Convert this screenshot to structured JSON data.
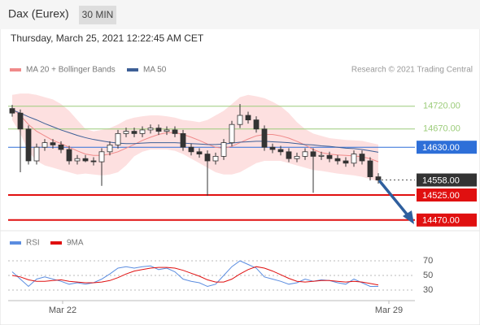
{
  "header": {
    "title": "Dax (Eurex)",
    "timeframe": "30 MIN",
    "timestamp": "Thursday, March 25, 2021 12:22:45 AM CET",
    "credit": "Research © 2021 Trading Central"
  },
  "chart_data": [
    {
      "type": "candlestick",
      "open": [
        14715,
        14705,
        14670,
        14600,
        14630,
        14640,
        14635,
        14625,
        14600,
        14605,
        14600,
        14598,
        14620,
        14635,
        14660,
        14665,
        14660,
        14668,
        14672,
        14665,
        14668,
        14660,
        14630,
        14620,
        14615,
        14600,
        14610,
        14640,
        14680,
        14700,
        14690,
        14670,
        14630,
        14625,
        14620,
        14605,
        14610,
        14620,
        14610,
        14612,
        14605,
        14600,
        14595,
        14615,
        14600,
        14565
      ],
      "high": [
        14723,
        14713,
        14678,
        14638,
        14648,
        14648,
        14643,
        14633,
        14613,
        14613,
        14608,
        14628,
        14643,
        14668,
        14673,
        14673,
        14676,
        14680,
        14680,
        14676,
        14676,
        14668,
        14638,
        14628,
        14623,
        14618,
        14648,
        14688,
        14725,
        14708,
        14698,
        14678,
        14638,
        14633,
        14628,
        14618,
        14628,
        14628,
        14620,
        14620,
        14613,
        14608,
        14623,
        14623,
        14608,
        14573
      ],
      "low": [
        14697,
        14575,
        14592,
        14592,
        14622,
        14627,
        14617,
        14592,
        14592,
        14597,
        14590,
        14545,
        14612,
        14627,
        14652,
        14652,
        14652,
        14660,
        14657,
        14657,
        14652,
        14622,
        14612,
        14607,
        14523,
        14592,
        14602,
        14632,
        14672,
        14682,
        14662,
        14622,
        14617,
        14612,
        14597,
        14597,
        14602,
        14530,
        14602,
        14597,
        14592,
        14587,
        14587,
        14592,
        14557,
        14550
      ],
      "close": [
        14705,
        14670,
        14600,
        14630,
        14640,
        14635,
        14625,
        14600,
        14605,
        14600,
        14598,
        14620,
        14635,
        14660,
        14665,
        14660,
        14668,
        14672,
        14665,
        14668,
        14660,
        14630,
        14620,
        14615,
        14600,
        14610,
        14640,
        14680,
        14700,
        14690,
        14670,
        14630,
        14625,
        14620,
        14605,
        14610,
        14620,
        14610,
        14612,
        14605,
        14600,
        14595,
        14615,
        14600,
        14565,
        14558
      ],
      "up_color": "#ffffff",
      "down_color": "#333333",
      "series": [
        {
          "name": "MA 20 + Bollinger Bands",
          "color": "#f08a8a",
          "band_color": "#fde0e0",
          "values": [
            14715,
            14700,
            14680,
            14665,
            14655,
            14645,
            14638,
            14630,
            14622,
            14615,
            14612,
            14612,
            14615,
            14620,
            14628,
            14636,
            14645,
            14652,
            14658,
            14662,
            14662,
            14658,
            14652,
            14645,
            14637,
            14630,
            14628,
            14632,
            14640,
            14648,
            14655,
            14658,
            14658,
            14655,
            14650,
            14643,
            14635,
            14625,
            14618,
            14615,
            14613,
            14612,
            14611,
            14609,
            14605,
            14598
          ],
          "upper": [
            14745,
            14748,
            14748,
            14745,
            14740,
            14735,
            14725,
            14710,
            14690,
            14670,
            14665,
            14668,
            14672,
            14680,
            14690,
            14695,
            14698,
            14700,
            14700,
            14698,
            14695,
            14690,
            14688,
            14685,
            14690,
            14700,
            14710,
            14725,
            14740,
            14745,
            14742,
            14738,
            14730,
            14720,
            14705,
            14685,
            14670,
            14660,
            14655,
            14650,
            14648,
            14646,
            14645,
            14644,
            14640,
            14636
          ],
          "lower": [
            14690,
            14660,
            14620,
            14600,
            14590,
            14585,
            14580,
            14575,
            14570,
            14572,
            14570,
            14568,
            14570,
            14575,
            14590,
            14610,
            14620,
            14625,
            14625,
            14625,
            14622,
            14615,
            14605,
            14595,
            14585,
            14575,
            14570,
            14570,
            14575,
            14585,
            14595,
            14600,
            14600,
            14600,
            14595,
            14590,
            14585,
            14580,
            14578,
            14575,
            14572,
            14570,
            14568,
            14565,
            14560,
            14555
          ]
        },
        {
          "name": "MA 50",
          "color": "#3d5f96",
          "values": [
            14712,
            14705,
            14697,
            14690,
            14682,
            14675,
            14668,
            14662,
            14656,
            14651,
            14647,
            14644,
            14641,
            14639,
            14638,
            14638,
            14639,
            14640,
            14640,
            14640,
            14640,
            14639,
            14638,
            14637,
            14636,
            14636,
            14637,
            14639,
            14641,
            14642,
            14643,
            14643,
            14642,
            14641,
            14640,
            14638,
            14636,
            14635,
            14633,
            14632,
            14630,
            14628,
            14627,
            14625,
            14622,
            14619
          ]
        }
      ],
      "xlim": [
        -0.5,
        49.5
      ],
      "ylim": [
        14450,
        14750
      ],
      "levels": [
        {
          "value": 14720,
          "label": "14720.00",
          "color": "#9ccc7a",
          "style": "text"
        },
        {
          "value": 14670,
          "label": "14670.00",
          "color": "#9ccc7a",
          "style": "text"
        },
        {
          "value": 14630,
          "label": "14630.00",
          "color": "#2e6fd8",
          "style": "box"
        },
        {
          "value": 14558,
          "label": "14558.00",
          "color": "#333333",
          "style": "current"
        },
        {
          "value": 14525,
          "label": "14525.00",
          "color": "#e01010",
          "style": "box"
        },
        {
          "value": 14470,
          "label": "14470.00",
          "color": "#e01010",
          "style": "box"
        }
      ]
    },
    {
      "type": "line",
      "series": [
        {
          "name": "RSI",
          "color": "#5b8de0",
          "values": [
            55,
            45,
            35,
            45,
            48,
            45,
            42,
            38,
            40,
            38,
            40,
            45,
            52,
            60,
            62,
            60,
            62,
            63,
            58,
            60,
            55,
            45,
            42,
            40,
            35,
            38,
            50,
            62,
            70,
            65,
            60,
            48,
            45,
            42,
            38,
            40,
            45,
            42,
            44,
            43,
            40,
            38,
            45,
            40,
            35,
            35
          ]
        },
        {
          "name": "9MA",
          "color": "#e01010",
          "values": [
            50,
            48,
            44,
            42,
            42,
            43,
            44,
            42,
            41,
            40,
            40,
            41,
            43,
            47,
            52,
            56,
            58,
            60,
            61,
            61,
            60,
            57,
            53,
            49,
            44,
            41,
            41,
            45,
            52,
            58,
            62,
            60,
            56,
            51,
            46,
            42,
            41,
            42,
            43,
            43,
            42,
            41,
            42,
            41,
            39,
            37
          ]
        }
      ],
      "xlim": [
        -0.5,
        49.5
      ],
      "ylim": [
        20,
        80
      ],
      "yticks": [
        30,
        50,
        70
      ],
      "xticks": [
        {
          "value": 6.2,
          "label": "Mar 22"
        },
        {
          "value": 46.3,
          "label": "Mar 29"
        }
      ]
    }
  ]
}
